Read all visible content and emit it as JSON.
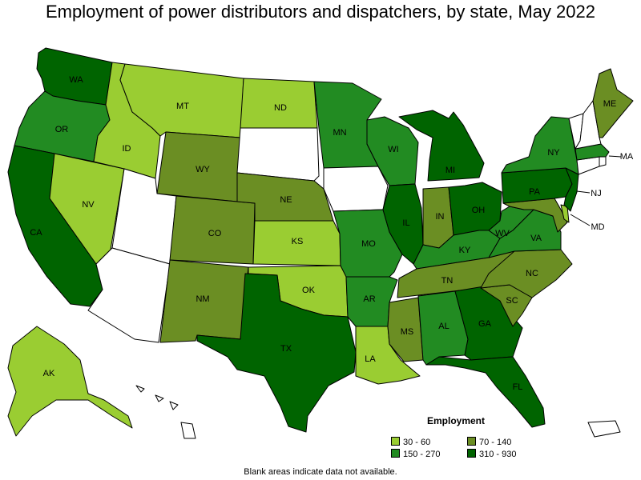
{
  "title": "Employment of power distributors and dispatchers, by state, May 2022",
  "legend": {
    "title": "Employment",
    "items": [
      {
        "label": "30 - 60",
        "color": "#9acd32"
      },
      {
        "label": "70 - 140",
        "color": "#6b8e23"
      },
      {
        "label": "150 - 270",
        "color": "#228b22"
      },
      {
        "label": "310 - 930",
        "color": "#006400"
      }
    ]
  },
  "note": "Blank areas indicate data not available.",
  "colors": {
    "c1": "#9acd32",
    "c2": "#6b8e23",
    "c3": "#228b22",
    "c4": "#006400",
    "blank": "#ffffff"
  },
  "states": [
    {
      "code": "WA",
      "label": "WA",
      "class": "c4"
    },
    {
      "code": "OR",
      "label": "OR",
      "class": "c3"
    },
    {
      "code": "CA",
      "label": "CA",
      "class": "c4"
    },
    {
      "code": "NV",
      "label": "NV",
      "class": "c1"
    },
    {
      "code": "ID",
      "label": "ID",
      "class": "c1"
    },
    {
      "code": "MT",
      "label": "MT",
      "class": "c1"
    },
    {
      "code": "WY",
      "label": "WY",
      "class": "c2"
    },
    {
      "code": "UT",
      "label": "",
      "class": "blank"
    },
    {
      "code": "AZ",
      "label": "",
      "class": "blank"
    },
    {
      "code": "CO",
      "label": "CO",
      "class": "c2"
    },
    {
      "code": "NM",
      "label": "NM",
      "class": "c2"
    },
    {
      "code": "ND",
      "label": "ND",
      "class": "c1"
    },
    {
      "code": "SD",
      "label": "",
      "class": "blank"
    },
    {
      "code": "NE",
      "label": "NE",
      "class": "c2"
    },
    {
      "code": "KS",
      "label": "KS",
      "class": "c1"
    },
    {
      "code": "OK",
      "label": "OK",
      "class": "c1"
    },
    {
      "code": "TX",
      "label": "TX",
      "class": "c4"
    },
    {
      "code": "MN",
      "label": "MN",
      "class": "c3"
    },
    {
      "code": "IA",
      "label": "",
      "class": "blank"
    },
    {
      "code": "MO",
      "label": "MO",
      "class": "c3"
    },
    {
      "code": "AR",
      "label": "AR",
      "class": "c3"
    },
    {
      "code": "LA",
      "label": "LA",
      "class": "c1"
    },
    {
      "code": "WI",
      "label": "WI",
      "class": "c3"
    },
    {
      "code": "IL",
      "label": "IL",
      "class": "c4"
    },
    {
      "code": "MI",
      "label": "MI",
      "class": "c4"
    },
    {
      "code": "IN",
      "label": "IN",
      "class": "c2"
    },
    {
      "code": "OH",
      "label": "OH",
      "class": "c4"
    },
    {
      "code": "KY",
      "label": "KY",
      "class": "c3"
    },
    {
      "code": "TN",
      "label": "TN",
      "class": "c2"
    },
    {
      "code": "MS",
      "label": "MS",
      "class": "c2"
    },
    {
      "code": "AL",
      "label": "AL",
      "class": "c3"
    },
    {
      "code": "GA",
      "label": "GA",
      "class": "c4"
    },
    {
      "code": "FL",
      "label": "FL",
      "class": "c4"
    },
    {
      "code": "SC",
      "label": "SC",
      "class": "c2"
    },
    {
      "code": "NC",
      "label": "NC",
      "class": "c2"
    },
    {
      "code": "VA",
      "label": "VA",
      "class": "c3"
    },
    {
      "code": "WV",
      "label": "WV",
      "class": "c3"
    },
    {
      "code": "MD",
      "label": "MD",
      "class": "c2"
    },
    {
      "code": "DE",
      "label": "",
      "class": "c1"
    },
    {
      "code": "PA",
      "label": "PA",
      "class": "c4"
    },
    {
      "code": "NJ",
      "label": "NJ",
      "class": "c4"
    },
    {
      "code": "NY",
      "label": "NY",
      "class": "c3"
    },
    {
      "code": "CT",
      "label": "",
      "class": "blank"
    },
    {
      "code": "RI",
      "label": "",
      "class": "blank"
    },
    {
      "code": "MA",
      "label": "MA",
      "class": "c3"
    },
    {
      "code": "VT",
      "label": "",
      "class": "blank"
    },
    {
      "code": "NH",
      "label": "",
      "class": "blank"
    },
    {
      "code": "ME",
      "label": "ME",
      "class": "c2"
    },
    {
      "code": "AK",
      "label": "AK",
      "class": "c1"
    },
    {
      "code": "HI",
      "label": "",
      "class": "blank"
    },
    {
      "code": "PR",
      "label": "",
      "class": "blank"
    }
  ]
}
